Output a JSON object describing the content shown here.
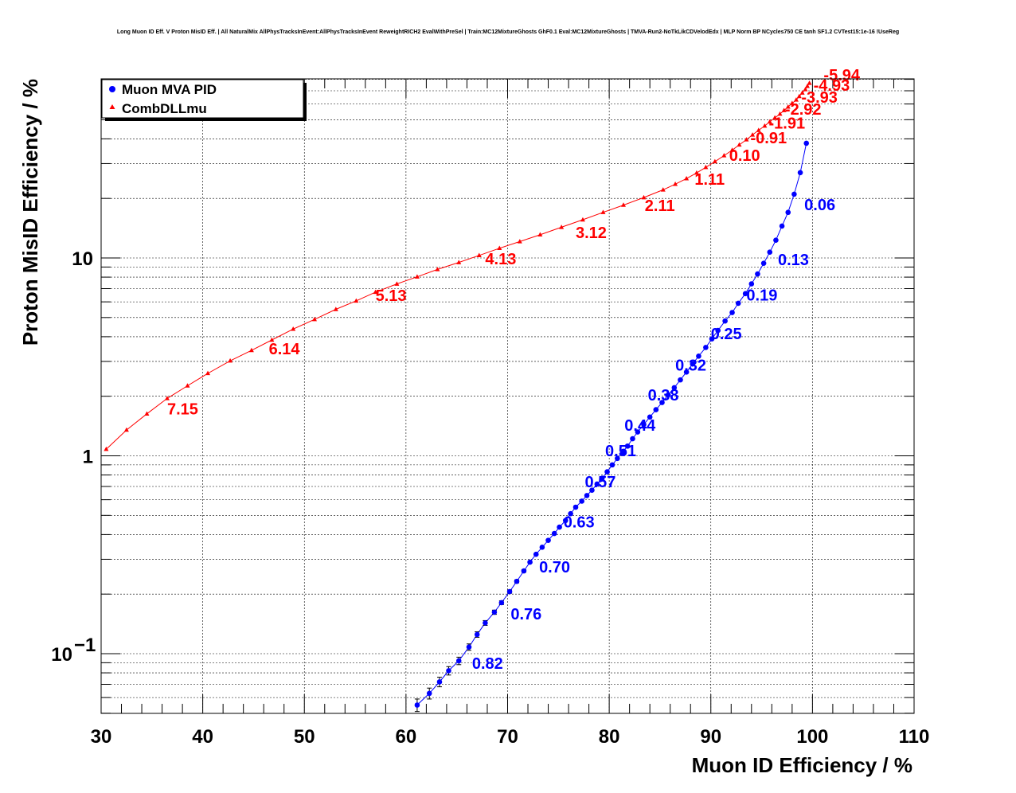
{
  "chart_data": {
    "type": "scatter",
    "title": "Long Muon ID Eff. V Proton MisID Eff. | All NaturalMix AllPhysTracksInEvent:AllPhysTracksInEvent ReweightRICH2 EvalWithPreSel | Train:MC12MixtureGhosts GhF0.1 Eval:MC12MixtureGhosts | TMVA-Run2-NoTkLikCDVelodEdx | MLP Norm BP NCycles750 CE tanh SF1.2 CVTest15:1e-16 !UseReg",
    "xlabel": "Muon ID Efficiency / %",
    "ylabel": "Proton MisID Efficiency / %",
    "xlim": [
      30,
      110
    ],
    "ylim": [
      0.055,
      80
    ],
    "yscale": "log",
    "grid": true,
    "legend_position": "top-left",
    "x_ticks": [
      "30",
      "40",
      "50",
      "60",
      "70",
      "80",
      "90",
      "100",
      "110"
    ],
    "y_ticks": [
      {
        "value": 0.1,
        "base": "10",
        "exp": "−1"
      },
      {
        "value": 1,
        "base": "1",
        "exp": ""
      },
      {
        "value": 10,
        "base": "10",
        "exp": ""
      }
    ],
    "series": [
      {
        "name": "Muon MVA PID",
        "color": "#0000ff",
        "marker": "circle",
        "x": [
          61.1,
          62.3,
          63.3,
          64.2,
          65.2,
          66.2,
          67.0,
          67.8,
          68.7,
          69.4,
          70.2,
          70.9,
          71.6,
          72.2,
          72.8,
          73.4,
          74.0,
          74.6,
          75.1,
          75.7,
          76.2,
          76.7,
          77.3,
          77.8,
          78.3,
          78.8,
          79.3,
          79.8,
          80.3,
          80.8,
          81.3,
          81.8,
          82.3,
          82.8,
          83.4,
          84.0,
          84.6,
          85.2,
          85.8,
          86.4,
          87.0,
          87.6,
          88.2,
          88.8,
          89.5,
          90.1,
          90.7,
          91.4,
          92.1,
          92.7,
          93.4,
          94.0,
          94.6,
          95.2,
          95.8,
          96.4,
          97.0,
          97.6,
          98.2,
          98.8,
          99.4
        ],
        "y": [
          0.055,
          0.063,
          0.072,
          0.082,
          0.092,
          0.108,
          0.125,
          0.143,
          0.162,
          0.181,
          0.206,
          0.232,
          0.262,
          0.29,
          0.318,
          0.345,
          0.374,
          0.405,
          0.436,
          0.471,
          0.51,
          0.55,
          0.59,
          0.63,
          0.67,
          0.72,
          0.77,
          0.83,
          0.9,
          0.97,
          1.04,
          1.12,
          1.22,
          1.32,
          1.44,
          1.57,
          1.71,
          1.86,
          2.03,
          2.21,
          2.42,
          2.65,
          2.91,
          3.19,
          3.53,
          3.9,
          4.3,
          4.8,
          5.3,
          5.9,
          6.6,
          7.4,
          8.3,
          9.4,
          10.7,
          12.3,
          14.5,
          17.0,
          21.0,
          27.0,
          38.0
        ],
        "yerr": [
          0.004,
          0.004,
          0.004,
          0.004,
          0.004,
          0.004,
          0.004,
          0.004,
          0.004,
          0.004,
          0.004,
          0.004,
          0.004,
          0,
          0,
          0,
          0,
          0,
          0,
          0,
          0,
          0,
          0,
          0,
          0,
          0,
          0,
          0,
          0,
          0,
          0,
          0,
          0,
          0,
          0,
          0,
          0,
          0,
          0,
          0,
          0,
          0,
          0,
          0,
          0,
          0,
          0,
          0,
          0,
          0,
          0,
          0,
          0,
          0,
          0,
          0,
          0,
          0,
          0,
          0,
          0
        ],
        "annotations": [
          {
            "text": "0.82",
            "x": 66.5,
            "y": 0.084
          },
          {
            "text": "0.76",
            "x": 70.3,
            "y": 0.149
          },
          {
            "text": "0.70",
            "x": 73.1,
            "y": 0.257
          },
          {
            "text": "0.63",
            "x": 75.5,
            "y": 0.434
          },
          {
            "text": "0.57",
            "x": 77.6,
            "y": 0.692
          },
          {
            "text": "0.51",
            "x": 79.6,
            "y": 0.994
          },
          {
            "text": "0.44",
            "x": 81.5,
            "y": 1.34
          },
          {
            "text": "0.38",
            "x": 83.8,
            "y": 1.9
          },
          {
            "text": "0.32",
            "x": 86.5,
            "y": 2.7
          },
          {
            "text": "0.25",
            "x": 90.0,
            "y": 3.89
          },
          {
            "text": "0.19",
            "x": 93.5,
            "y": 6.08
          },
          {
            "text": "0.13",
            "x": 96.6,
            "y": 9.2
          },
          {
            "text": "0.06",
            "x": 99.2,
            "y": 17.4
          }
        ]
      },
      {
        "name": "CombDLLmu",
        "color": "#ff0000",
        "marker": "triangle",
        "x": [
          30.5,
          32.5,
          34.5,
          36.5,
          38.5,
          40.5,
          42.7,
          44.8,
          46.8,
          48.9,
          51.0,
          53.1,
          55.1,
          57.0,
          59.1,
          61.1,
          63.1,
          65.2,
          67.2,
          69.2,
          71.2,
          73.2,
          75.3,
          77.4,
          79.4,
          81.4,
          83.4,
          85.3,
          86.5,
          87.6,
          88.6,
          89.5,
          90.4,
          91.3,
          92.1,
          92.8,
          93.5,
          94.1,
          94.7,
          95.3,
          95.8,
          96.3,
          96.8,
          97.2,
          97.6,
          98.0,
          98.4,
          98.7,
          99.0,
          99.3,
          99.5,
          99.7
        ],
        "y": [
          1.08,
          1.35,
          1.63,
          1.95,
          2.26,
          2.61,
          3.02,
          3.41,
          3.85,
          4.37,
          4.89,
          5.5,
          6.07,
          6.72,
          7.39,
          8.03,
          8.75,
          9.49,
          10.3,
          11.2,
          12.1,
          13.1,
          14.3,
          15.6,
          17.0,
          18.5,
          20.2,
          22.1,
          23.6,
          25.2,
          26.9,
          28.7,
          30.7,
          32.9,
          35.1,
          37.3,
          39.6,
          41.9,
          44.2,
          46.5,
          48.8,
          51.1,
          53.4,
          55.7,
          58.0,
          60.5,
          63.0,
          65.6,
          68.3,
          71.0,
          73.8,
          76.5
        ],
        "annotations": [
          {
            "text": "7.15",
            "x": 36.5,
            "y": 1.62
          },
          {
            "text": "6.14",
            "x": 46.5,
            "y": 3.26
          },
          {
            "text": "5.13",
            "x": 57.0,
            "y": 6.05
          },
          {
            "text": "4.13",
            "x": 67.8,
            "y": 9.3
          },
          {
            "text": "3.12",
            "x": 76.7,
            "y": 12.6
          },
          {
            "text": "2.11",
            "x": 83.5,
            "y": 17.3
          },
          {
            "text": "1.11",
            "x": 88.4,
            "y": 23.5
          },
          {
            "text": "0.10",
            "x": 91.8,
            "y": 31.0
          },
          {
            "text": "-0.91",
            "x": 93.9,
            "y": 38.0
          },
          {
            "text": "-1.91",
            "x": 95.7,
            "y": 45.0
          },
          {
            "text": "-2.92",
            "x": 97.3,
            "y": 53.0
          },
          {
            "text": "-3.93",
            "x": 98.9,
            "y": 61.0
          },
          {
            "text": "-4.93",
            "x": 100.1,
            "y": 70.0
          },
          {
            "text": "-5.94",
            "x": 101.1,
            "y": 79.0
          }
        ]
      }
    ]
  }
}
